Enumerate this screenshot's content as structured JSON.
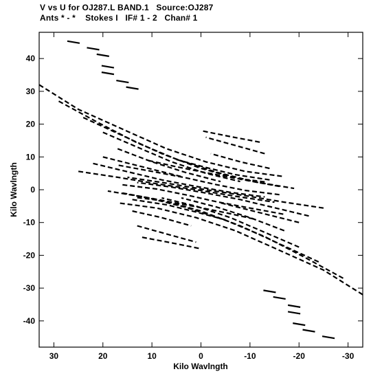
{
  "header": {
    "line1": "V vs U for OJ287.L BAND.1   Source:OJ287",
    "line2": "Ants * - *    Stokes I   IF# 1 - 2   Chan# 1"
  },
  "chart_data": {
    "type": "scatter",
    "title": "V vs U for OJ287.L BAND.1   Source:OJ287",
    "subtitle": "Ants * - *    Stokes I   IF# 1 - 2   Chan# 1",
    "xlabel": "Kilo Wavlngth",
    "ylabel": "Kilo Wavlngth",
    "xlim": [
      33,
      -33
    ],
    "ylim": [
      -48,
      48
    ],
    "x_ticks": [
      30,
      20,
      10,
      0,
      -10,
      -20,
      -30
    ],
    "x_tick_labels": [
      "30",
      "20",
      "10",
      "0",
      "-10",
      "-20",
      "-30"
    ],
    "y_ticks": [
      40,
      30,
      20,
      10,
      0,
      -10,
      -20,
      -30,
      -40
    ],
    "y_tick_labels": [
      "40",
      "30",
      "20",
      "10",
      "0",
      "-10",
      "-20",
      "-30",
      "-40"
    ],
    "grid": false,
    "symmetric": true,
    "tracks": [
      {
        "u": [
          33,
          25,
          15,
          7,
          -1,
          -9,
          -17
        ],
        "v": [
          32,
          24.5,
          17.8,
          12.5,
          8.5,
          5.6,
          4
        ]
      },
      {
        "u": [
          29,
          21,
          13,
          5,
          -3,
          -11,
          -19
        ],
        "v": [
          27,
          20.5,
          14.3,
          9.3,
          5.4,
          2.4,
          0.4
        ]
      },
      {
        "u": [
          24,
          16,
          8,
          0,
          -8,
          -16
        ],
        "v": [
          22,
          16.5,
          11,
          6.5,
          3.2,
          1
        ]
      },
      {
        "u": [
          20,
          13,
          6,
          -1,
          -8
        ],
        "v": [
          17.5,
          13,
          8.5,
          5,
          2.5
        ]
      },
      {
        "u": [
          17,
          10,
          3,
          -4
        ],
        "v": [
          12.5,
          8.5,
          5.2,
          2.5
        ]
      },
      {
        "u": [
          22,
          15,
          8,
          1,
          -6,
          -13
        ],
        "v": [
          8,
          5.5,
          3,
          1,
          -0.8,
          -2.2
        ]
      },
      {
        "u": [
          25,
          17,
          9,
          1,
          -7,
          -15
        ],
        "v": [
          5.6,
          3.8,
          1.8,
          0,
          -2,
          -3.8
        ]
      },
      {
        "u": [
          16,
          9,
          3,
          -3,
          -10,
          -17
        ],
        "v": [
          1.5,
          0.2,
          -1.6,
          -3.6,
          -5.6,
          -7.5
        ]
      },
      {
        "u": [
          14,
          7,
          1,
          -5
        ],
        "v": [
          -3,
          -4.6,
          -6.8,
          -9.2
        ]
      },
      {
        "u": [
          14,
          8,
          2
        ],
        "v": [
          -6.5,
          -8.5,
          -11
        ]
      },
      {
        "u": [
          13,
          7,
          1
        ],
        "v": [
          -11,
          -13.5,
          -16
        ]
      },
      {
        "u": [
          12,
          6,
          0
        ],
        "v": [
          -14.5,
          -16.2,
          -18
        ]
      },
      {
        "u": [
          13,
          7,
          1,
          -5,
          -11
        ],
        "v": [
          -2.4,
          -3.5,
          -5.2,
          -7,
          -9
        ]
      },
      {
        "u": [
          20,
          12,
          4
        ],
        "v": [
          10,
          7,
          4
        ]
      }
    ],
    "dashes": [
      {
        "u": 26,
        "v": 45
      },
      {
        "u": 22,
        "v": 43
      },
      {
        "u": 20,
        "v": 41
      },
      {
        "u": 19,
        "v": 37.5
      },
      {
        "u": 19,
        "v": 35.5
      },
      {
        "u": 16,
        "v": 33
      },
      {
        "u": 14,
        "v": 31
      }
    ]
  },
  "axes_meta": {
    "x_label": "Kilo Wavlngth",
    "y_label": "Kilo Wavlngth"
  }
}
